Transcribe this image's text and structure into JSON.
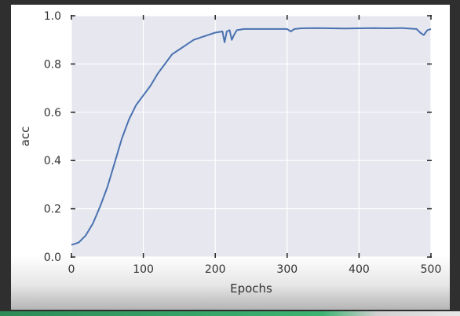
{
  "colors": {
    "plot_background": "#e6e7ef",
    "grid": "#ffffff",
    "line": "#4a72b0",
    "axis_text": "#333333"
  },
  "chart_data": {
    "type": "line",
    "title": "",
    "xlabel": "Epochs",
    "ylabel": "acc",
    "xlim": [
      0,
      500
    ],
    "ylim": [
      0.0,
      1.0
    ],
    "xticks": [
      0,
      100,
      200,
      300,
      400,
      500
    ],
    "xtick_labels": [
      "0",
      "100",
      "200",
      "300",
      "400",
      "500"
    ],
    "yticks": [
      0.0,
      0.2,
      0.4,
      0.6,
      0.8,
      1.0
    ],
    "ytick_labels": [
      "0.0",
      "0.2",
      "0.4",
      "0.6",
      "0.8",
      "1.0"
    ],
    "grid": true,
    "series": [
      {
        "x": [
          0,
          10,
          20,
          30,
          40,
          50,
          60,
          70,
          80,
          90,
          100,
          110,
          120,
          130,
          140,
          150,
          160,
          170,
          180,
          190,
          200,
          210,
          213,
          216,
          220,
          223,
          226,
          230,
          240,
          260,
          280,
          300,
          305,
          310,
          320,
          340,
          360,
          380,
          400,
          420,
          440,
          460,
          480,
          485,
          490,
          495,
          500
        ],
        "y": [
          0.05,
          0.06,
          0.09,
          0.14,
          0.21,
          0.29,
          0.39,
          0.49,
          0.57,
          0.63,
          0.67,
          0.71,
          0.76,
          0.8,
          0.84,
          0.86,
          0.88,
          0.9,
          0.91,
          0.92,
          0.93,
          0.935,
          0.89,
          0.935,
          0.94,
          0.9,
          0.92,
          0.94,
          0.945,
          0.945,
          0.945,
          0.945,
          0.935,
          0.945,
          0.948,
          0.949,
          0.948,
          0.947,
          0.948,
          0.949,
          0.948,
          0.949,
          0.945,
          0.93,
          0.92,
          0.94,
          0.945
        ]
      }
    ]
  }
}
